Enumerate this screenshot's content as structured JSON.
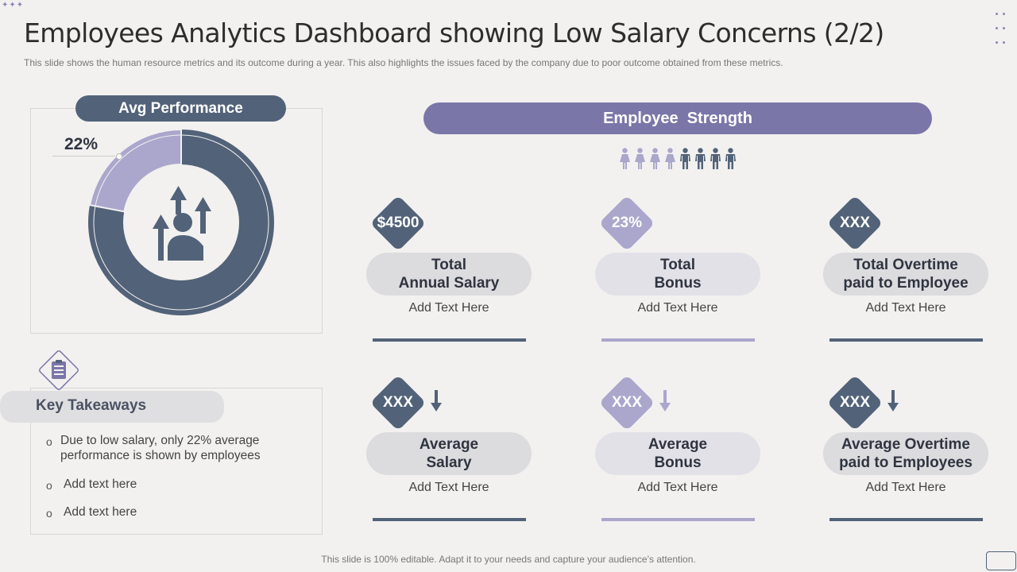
{
  "title": "Employees Analytics Dashboard showing Low Salary Concerns (2/2)",
  "subtitle": "This slide shows the human resource metrics and its outcome during a year. This also highlights the issues faced by the company due to poor outcome obtained from these metrics.",
  "avg_performance": {
    "label": "Avg Performance",
    "percent_label": "22%",
    "percent_value": 22
  },
  "employee_strength": {
    "label": "Employee  Strength",
    "female_count": 4,
    "male_count": 4
  },
  "metrics": [
    {
      "value": "$4500",
      "line1": "Total",
      "line2": "Annual Salary",
      "text": "Add Text Here",
      "arrow": "",
      "diamond_color": "#526278",
      "bar_color": "#526278"
    },
    {
      "value": "23%",
      "line1": "Total",
      "line2": "Bonus",
      "text": "Add Text Here",
      "arrow": "",
      "diamond_color": "#aaa6cc",
      "bar_color": "#aaa6cc"
    },
    {
      "value": "XXX",
      "line1": "Total Overtime",
      "line2": "paid to Employee",
      "text": "Add Text Here",
      "arrow": "",
      "diamond_color": "#526278",
      "bar_color": "#526278"
    },
    {
      "value": "XXX",
      "line1": "Average",
      "line2": "Salary",
      "text": "Add Text Here",
      "arrow": "down",
      "diamond_color": "#526278",
      "bar_color": "#526278"
    },
    {
      "value": "XXX",
      "line1": "Average",
      "line2": "Bonus",
      "text": "Add Text Here",
      "arrow": "down",
      "diamond_color": "#aaa6cc",
      "bar_color": "#aaa6cc"
    },
    {
      "value": "XXX",
      "line1": "Average Overtime",
      "line2": "paid to Employees",
      "text": "Add Text Here",
      "arrow": "down",
      "diamond_color": "#526278",
      "bar_color": "#526278"
    }
  ],
  "key_takeaways": {
    "label": "Key Takeaways",
    "items": [
      "Due to low salary, only 22%  average performance is shown by employees",
      "Add text  here",
      "Add text  here"
    ],
    "bullet": "o"
  },
  "footer": "This slide is 100% editable. Adapt it to your needs and capture your audience’s attention.",
  "icons": [
    "grid-dots-icon",
    "employee-growth-icon",
    "clipboard-icon",
    "female-person-icon",
    "male-person-icon",
    "down-arrow-icon"
  ],
  "colors": {
    "dark": "#526278",
    "purple": "#7b76a8",
    "lavender": "#aaa6cc",
    "light": "#dcdcdf"
  }
}
